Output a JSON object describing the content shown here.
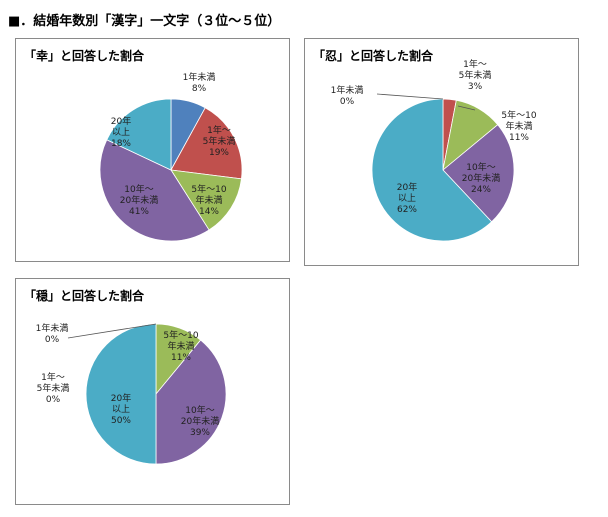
{
  "heading": "■．結婚年数別「漢字」一文字（３位～５位）",
  "colors": {
    "lt1": "#4f81bd",
    "y1to5": "#c0504d",
    "y5to10": "#9bbb59",
    "y10to20": "#8064a2",
    "y20plus": "#4bacc6"
  },
  "chart_data": [
    {
      "type": "pie",
      "title": "「幸」と回答した割合",
      "slices": [
        {
          "category": "lt1",
          "label": [
            "1年未満",
            "8%"
          ],
          "value": 8
        },
        {
          "category": "y1to5",
          "label": [
            "1年～",
            "5年未満",
            "19%"
          ],
          "value": 19
        },
        {
          "category": "y5to10",
          "label": [
            "5年～10",
            "年未満",
            "14%"
          ],
          "value": 14
        },
        {
          "category": "y10to20",
          "label": [
            "10年～",
            "20年未満",
            "41%"
          ],
          "value": 41
        },
        {
          "category": "y20plus",
          "label": [
            "20年",
            "以上",
            "18%"
          ],
          "value": 18
        }
      ]
    },
    {
      "type": "pie",
      "title": "「忍」と回答した割合",
      "slices": [
        {
          "category": "lt1",
          "label": [
            "1年未満",
            "0%"
          ],
          "value": 0
        },
        {
          "category": "y1to5",
          "label": [
            "1年～",
            "5年未満",
            "3%"
          ],
          "value": 3
        },
        {
          "category": "y5to10",
          "label": [
            "5年～10",
            "年未満",
            "11%"
          ],
          "value": 11
        },
        {
          "category": "y10to20",
          "label": [
            "10年～",
            "20年未満",
            "24%"
          ],
          "value": 24
        },
        {
          "category": "y20plus",
          "label": [
            "20年",
            "以上",
            "62%"
          ],
          "value": 62
        }
      ]
    },
    {
      "type": "pie",
      "title": "「穏」と回答した割合",
      "slices": [
        {
          "category": "lt1",
          "label": [
            "1年未満",
            "0%"
          ],
          "value": 0
        },
        {
          "category": "y1to5",
          "label": [
            "1年～",
            "5年未満",
            "0%"
          ],
          "value": 0
        },
        {
          "category": "y5to10",
          "label": [
            "5年～10",
            "年未満",
            "11%"
          ],
          "value": 11
        },
        {
          "category": "y10to20",
          "label": [
            "10年～",
            "20年未満",
            "39%"
          ],
          "value": 39
        },
        {
          "category": "y20plus",
          "label": [
            "20年",
            "以上",
            "50%"
          ],
          "value": 50
        }
      ]
    }
  ]
}
